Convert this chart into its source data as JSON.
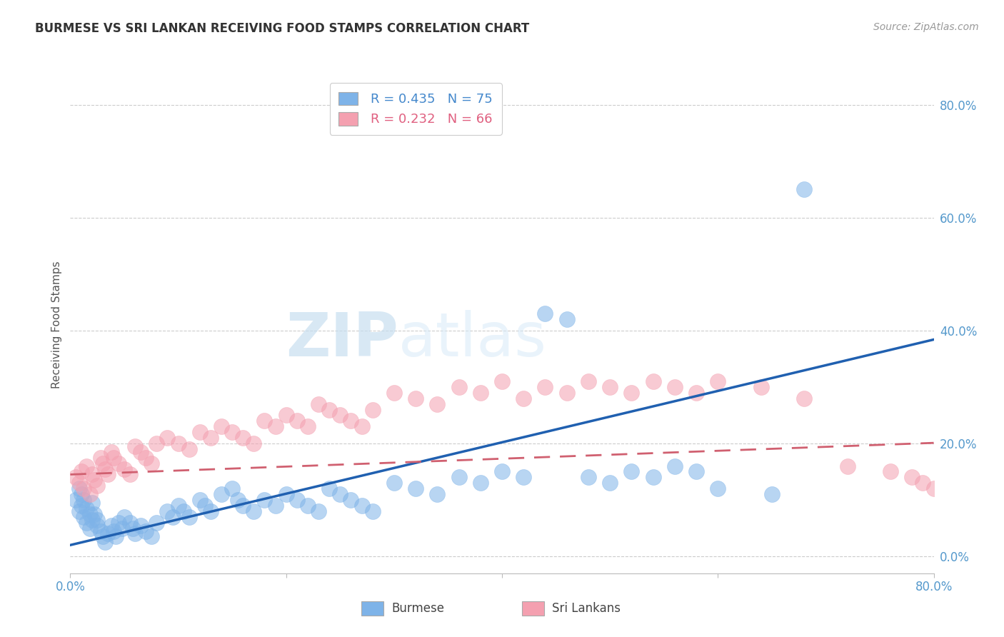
{
  "title": "BURMESE VS SRI LANKAN RECEIVING FOOD STAMPS CORRELATION CHART",
  "source": "Source: ZipAtlas.com",
  "ylabel": "Receiving Food Stamps",
  "ytick_values": [
    0.0,
    0.2,
    0.4,
    0.6,
    0.8
  ],
  "xlim": [
    0.0,
    0.8
  ],
  "ylim": [
    -0.03,
    0.85
  ],
  "burmese_color": "#7EB3E8",
  "srilankan_color": "#F4A0B0",
  "burmese_line_color": "#2060B0",
  "srilankan_line_color": "#D06070",
  "watermark_zip": "ZIP",
  "watermark_atlas": "atlas",
  "legend_label1": "R = 0.435   N = 75",
  "legend_label2": "R = 0.232   N = 66",
  "legend_color1": "#4488CC",
  "legend_color2": "#E06080",
  "burmese_x": [
    0.005,
    0.008,
    0.01,
    0.012,
    0.015,
    0.018,
    0.02,
    0.022,
    0.025,
    0.008,
    0.01,
    0.012,
    0.015,
    0.018,
    0.02,
    0.025,
    0.028,
    0.03,
    0.032,
    0.035,
    0.038,
    0.04,
    0.042,
    0.045,
    0.048,
    0.05,
    0.055,
    0.058,
    0.06,
    0.065,
    0.07,
    0.075,
    0.08,
    0.09,
    0.095,
    0.1,
    0.105,
    0.11,
    0.12,
    0.125,
    0.13,
    0.14,
    0.15,
    0.155,
    0.16,
    0.17,
    0.18,
    0.19,
    0.2,
    0.21,
    0.22,
    0.23,
    0.24,
    0.25,
    0.26,
    0.27,
    0.28,
    0.3,
    0.32,
    0.34,
    0.36,
    0.38,
    0.4,
    0.42,
    0.44,
    0.46,
    0.48,
    0.5,
    0.52,
    0.54,
    0.56,
    0.58,
    0.6,
    0.65,
    0.68
  ],
  "burmese_y": [
    0.1,
    0.08,
    0.09,
    0.07,
    0.06,
    0.05,
    0.095,
    0.075,
    0.065,
    0.12,
    0.11,
    0.1,
    0.085,
    0.075,
    0.065,
    0.055,
    0.045,
    0.035,
    0.025,
    0.04,
    0.055,
    0.045,
    0.035,
    0.06,
    0.05,
    0.07,
    0.06,
    0.05,
    0.04,
    0.055,
    0.045,
    0.035,
    0.06,
    0.08,
    0.07,
    0.09,
    0.08,
    0.07,
    0.1,
    0.09,
    0.08,
    0.11,
    0.12,
    0.1,
    0.09,
    0.08,
    0.1,
    0.09,
    0.11,
    0.1,
    0.09,
    0.08,
    0.12,
    0.11,
    0.1,
    0.09,
    0.08,
    0.13,
    0.12,
    0.11,
    0.14,
    0.13,
    0.15,
    0.14,
    0.43,
    0.42,
    0.14,
    0.13,
    0.15,
    0.14,
    0.16,
    0.15,
    0.12,
    0.11,
    0.65
  ],
  "srilankan_x": [
    0.005,
    0.008,
    0.01,
    0.012,
    0.015,
    0.018,
    0.02,
    0.022,
    0.025,
    0.028,
    0.03,
    0.032,
    0.035,
    0.038,
    0.04,
    0.045,
    0.05,
    0.055,
    0.06,
    0.065,
    0.07,
    0.075,
    0.08,
    0.09,
    0.1,
    0.11,
    0.12,
    0.13,
    0.14,
    0.15,
    0.16,
    0.17,
    0.18,
    0.19,
    0.2,
    0.21,
    0.22,
    0.23,
    0.24,
    0.25,
    0.26,
    0.27,
    0.28,
    0.3,
    0.32,
    0.34,
    0.36,
    0.38,
    0.4,
    0.42,
    0.44,
    0.46,
    0.48,
    0.5,
    0.52,
    0.54,
    0.56,
    0.58,
    0.6,
    0.64,
    0.68,
    0.72,
    0.76,
    0.78,
    0.79,
    0.8
  ],
  "srilankan_y": [
    0.14,
    0.13,
    0.15,
    0.12,
    0.16,
    0.11,
    0.145,
    0.135,
    0.125,
    0.175,
    0.165,
    0.155,
    0.145,
    0.185,
    0.175,
    0.165,
    0.155,
    0.145,
    0.195,
    0.185,
    0.175,
    0.165,
    0.2,
    0.21,
    0.2,
    0.19,
    0.22,
    0.21,
    0.23,
    0.22,
    0.21,
    0.2,
    0.24,
    0.23,
    0.25,
    0.24,
    0.23,
    0.27,
    0.26,
    0.25,
    0.24,
    0.23,
    0.26,
    0.29,
    0.28,
    0.27,
    0.3,
    0.29,
    0.31,
    0.28,
    0.3,
    0.29,
    0.31,
    0.3,
    0.29,
    0.31,
    0.3,
    0.29,
    0.31,
    0.3,
    0.28,
    0.16,
    0.15,
    0.14,
    0.13,
    0.12
  ]
}
